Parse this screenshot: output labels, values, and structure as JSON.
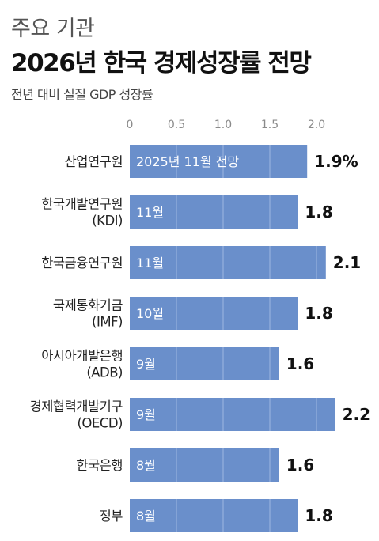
{
  "header": {
    "supertitle": "주요 기관",
    "title": "2026년 한국 경제성장률 전망",
    "subtitle": "전년 대비 실질 GDP 성장률"
  },
  "colors": {
    "bar": "#6a8fcb",
    "grid_on_bar": "#9fb7e0",
    "text": "#111111"
  },
  "chart_data": {
    "type": "bar",
    "orientation": "horizontal",
    "title": "2026년 한국 경제성장률 전망",
    "subtitle": "전년 대비 실질 GDP 성장률",
    "xlim": [
      0,
      2.0
    ],
    "ticks": [
      "0",
      "0.5",
      "1.0",
      "1.5",
      "2.0"
    ],
    "tick_values": [
      0,
      0.5,
      1.0,
      1.5,
      2.0
    ],
    "grid": true,
    "categories": [
      [
        "산업연구원"
      ],
      [
        "한국개발연구원",
        "(KDI)"
      ],
      [
        "한국금융연구원"
      ],
      [
        "국제통화기금",
        "(IMF)"
      ],
      [
        "아시아개발은행",
        "(ADB)"
      ],
      [
        "경제협력개발기구",
        "(OECD)"
      ],
      [
        "한국은행"
      ],
      [
        "정부"
      ]
    ],
    "values": [
      1.9,
      1.8,
      2.1,
      1.8,
      1.6,
      2.2,
      1.6,
      1.8
    ],
    "value_labels": [
      "1.9%",
      "1.8",
      "2.1",
      "1.8",
      "1.6",
      "2.2",
      "1.6",
      "1.8"
    ],
    "bar_labels": [
      "2025년 11월 전망",
      "11월",
      "11월",
      "10월",
      "9월",
      "9월",
      "8월",
      "8월"
    ]
  }
}
